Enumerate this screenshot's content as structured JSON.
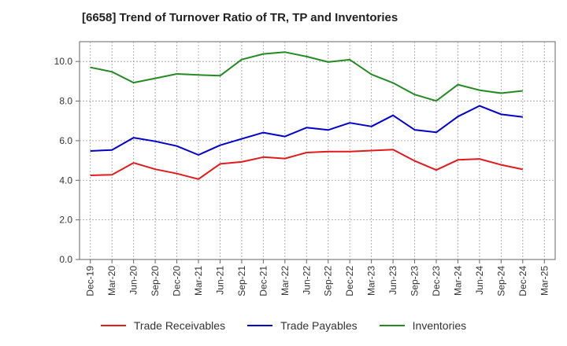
{
  "chart_data": {
    "type": "line",
    "title": "[6658]  Trend of Turnover Ratio of TR, TP and Inventories",
    "xlabel": "",
    "ylabel": "",
    "x": [
      "Dec-19",
      "Mar-20",
      "Jun-20",
      "Sep-20",
      "Dec-20",
      "Mar-21",
      "Jun-21",
      "Sep-21",
      "Dec-21",
      "Mar-22",
      "Jun-22",
      "Sep-22",
      "Dec-22",
      "Mar-23",
      "Jun-23",
      "Sep-23",
      "Dec-23",
      "Mar-24",
      "Jun-24",
      "Sep-24",
      "Dec-24",
      "Mar-25"
    ],
    "ylim": [
      0,
      11
    ],
    "yticks": [
      0,
      2,
      4,
      6,
      8,
      10
    ],
    "ytick_labels": [
      "0.0",
      "2.0",
      "4.0",
      "6.0",
      "8.0",
      "10.0"
    ],
    "grid": true,
    "legend_position": "bottom",
    "series": [
      {
        "name": "Trade Receivables",
        "color": "#e31a1c",
        "values": [
          4.25,
          4.28,
          4.88,
          4.56,
          4.34,
          4.06,
          4.83,
          4.93,
          5.17,
          5.1,
          5.4,
          5.45,
          5.45,
          5.5,
          5.55,
          4.98,
          4.52,
          5.03,
          5.08,
          4.78,
          4.55,
          null
        ]
      },
      {
        "name": "Trade Payables",
        "color": "#0000cc",
        "values": [
          5.48,
          5.53,
          6.15,
          5.97,
          5.73,
          5.28,
          5.77,
          6.09,
          6.41,
          6.21,
          6.66,
          6.54,
          6.9,
          6.72,
          7.28,
          6.55,
          6.42,
          7.22,
          7.76,
          7.33,
          7.2,
          null
        ]
      },
      {
        "name": "Inventories",
        "color": "#228b22",
        "values": [
          9.7,
          9.48,
          8.93,
          9.15,
          9.37,
          9.32,
          9.28,
          10.1,
          10.38,
          10.47,
          10.25,
          9.97,
          10.09,
          9.35,
          8.92,
          8.33,
          8.01,
          8.83,
          8.55,
          8.4,
          8.52,
          null
        ]
      }
    ]
  }
}
